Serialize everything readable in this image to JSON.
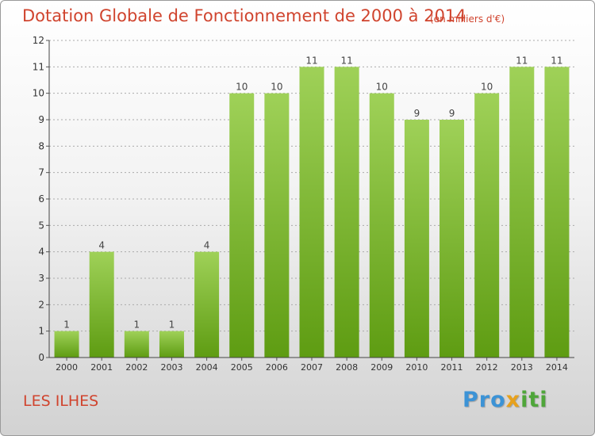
{
  "title": "Dotation Globale de Fonctionnement de 2000 à 2014",
  "unit_note": "(en milliers d'€)",
  "commune": "LES ILHES",
  "logo": {
    "text": "Proxiti",
    "parts": [
      "Pro",
      "x",
      "iti"
    ],
    "colors": [
      "#3c93d6",
      "#e7a11c",
      "#4fa63a"
    ]
  },
  "colors": {
    "bar_top": "#9fd158",
    "bar_bottom": "#5e9c12",
    "title": "#d0442e",
    "grid": "#aaaaaa"
  },
  "chart_data": {
    "type": "bar",
    "title": "Dotation Globale de Fonctionnement de 2000 à 2014",
    "subtitle": "(en milliers d'€)",
    "xlabel": "",
    "ylabel": "",
    "categories": [
      "2000",
      "2001",
      "2002",
      "2003",
      "2004",
      "2005",
      "2006",
      "2007",
      "2008",
      "2009",
      "2010",
      "2011",
      "2012",
      "2013",
      "2014"
    ],
    "values": [
      1,
      4,
      1,
      1,
      4,
      10,
      10,
      11,
      11,
      10,
      9,
      9,
      10,
      11,
      11
    ],
    "yticks": [
      0,
      1,
      2,
      3,
      4,
      5,
      6,
      7,
      8,
      9,
      10,
      11,
      12
    ],
    "ylim": [
      0,
      12
    ],
    "grid": true,
    "data_labels": true
  }
}
